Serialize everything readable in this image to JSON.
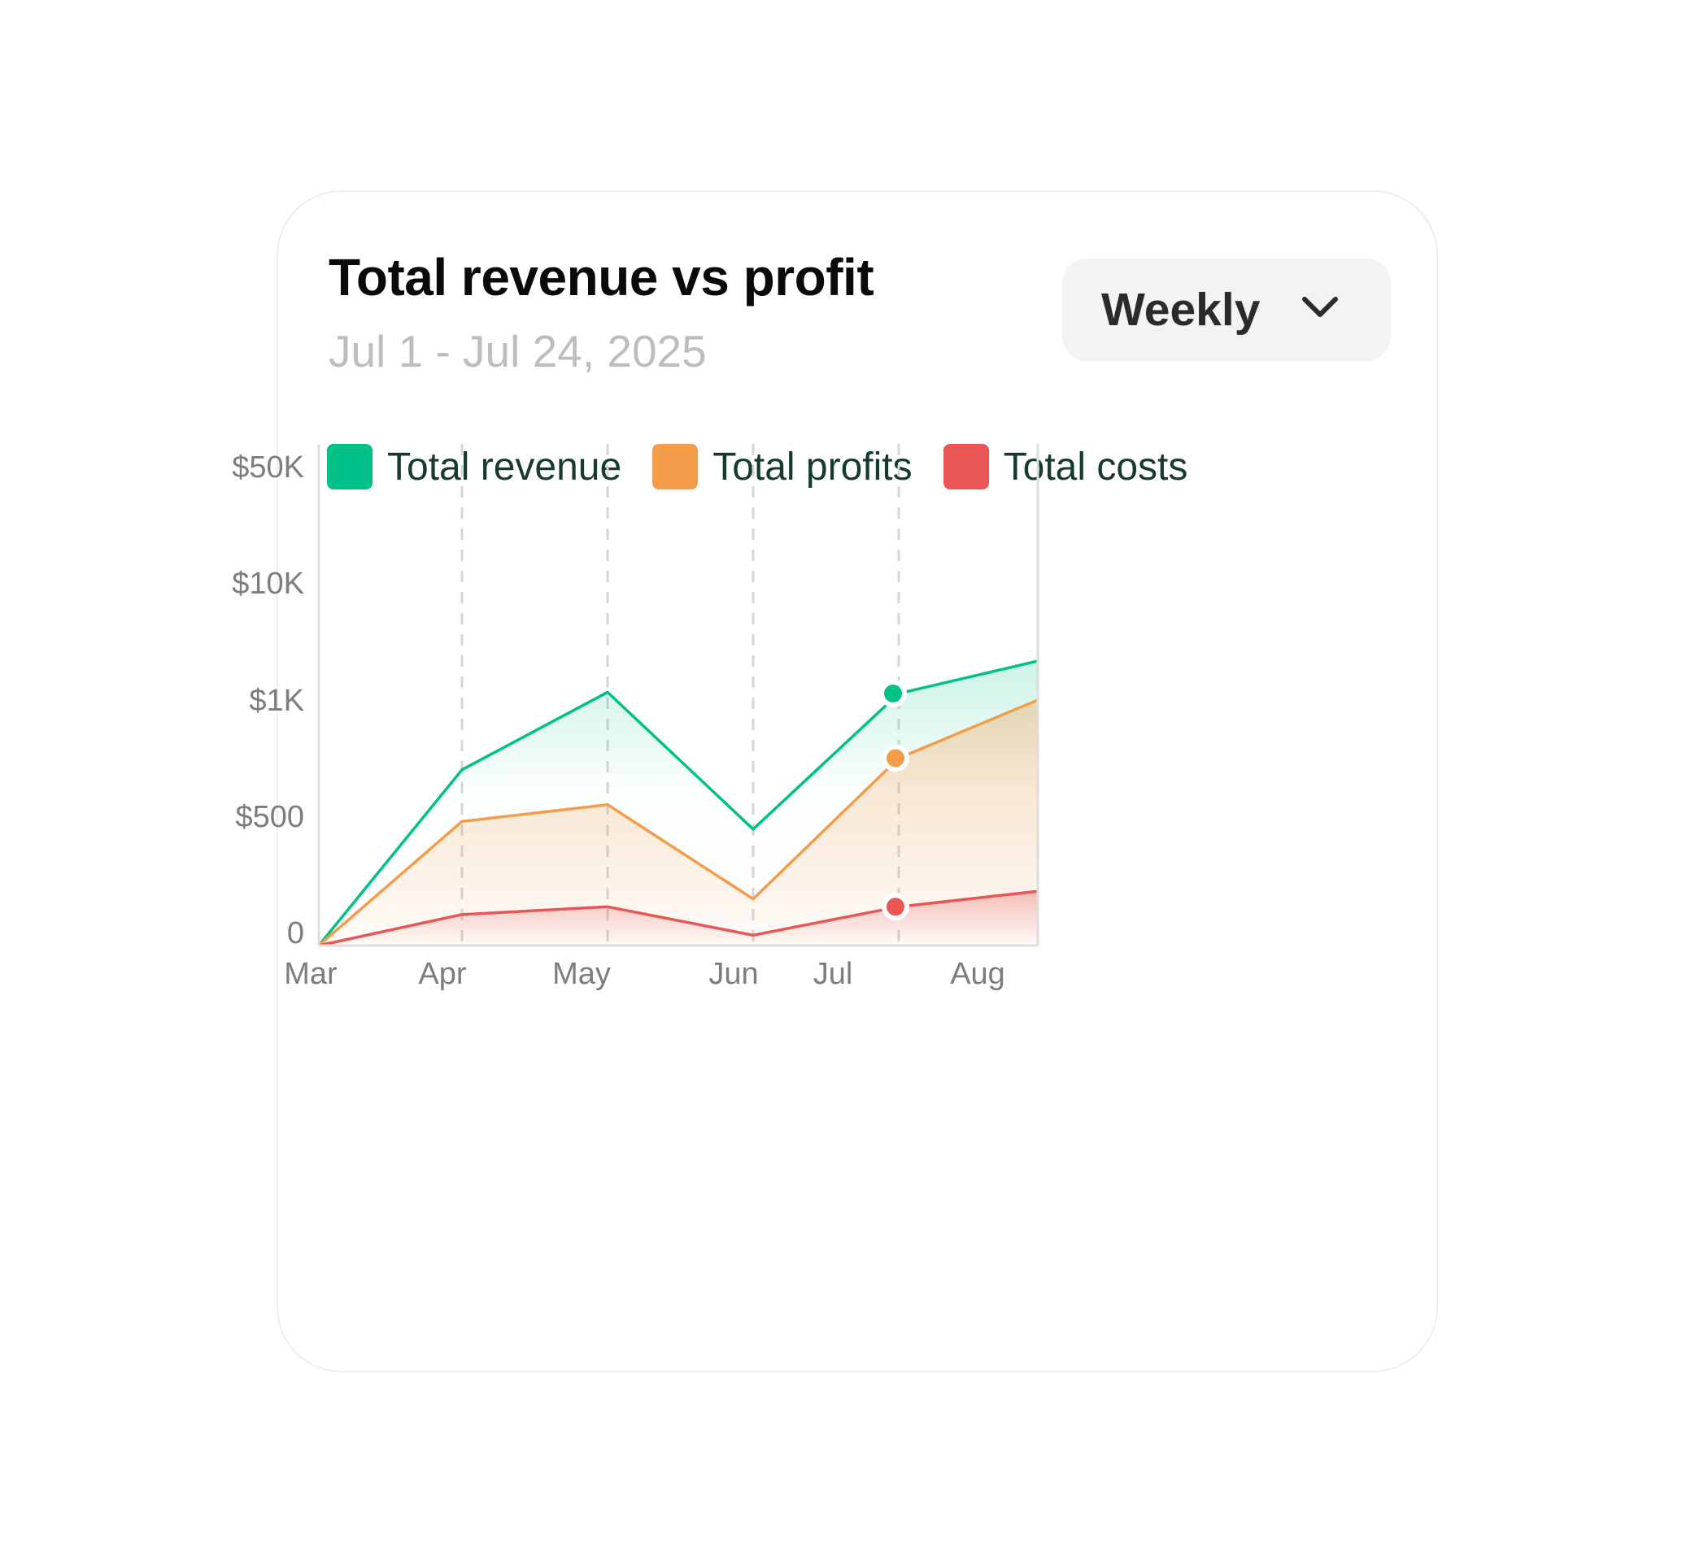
{
  "header": {
    "title": "Total revenue vs profit",
    "subtitle": "Jul 1 - Jul 24, 2025"
  },
  "period_select": {
    "selected": "Weekly",
    "icon": "chevron-down-icon"
  },
  "legend": [
    {
      "label": "Total revenue",
      "color": "#00c187"
    },
    {
      "label": "Total profits",
      "color": "#f39c4a"
    },
    {
      "label": "Total costs",
      "color": "#e85656"
    }
  ],
  "chart_data": {
    "type": "area",
    "categories": [
      "Mar",
      "Apr",
      "May",
      "Jun",
      "Jul",
      "Aug"
    ],
    "y_ticks": [
      "$50K",
      "$10K",
      "$1K",
      "$500",
      "0"
    ],
    "y_tick_values": [
      50000,
      10000,
      1000,
      500,
      0
    ],
    "y_scale": "non-linear (tick-indexed)",
    "grid": "vertical dashed lines at each month",
    "legend_position": "top-left",
    "series": [
      {
        "name": "Total revenue",
        "color": "#00c187",
        "values": [
          0,
          700,
          1600,
          450,
          1500,
          4000
        ]
      },
      {
        "name": "Total profits",
        "color": "#f39c4a",
        "values": [
          0,
          480,
          550,
          180,
          750,
          1000
        ]
      },
      {
        "name": "Total costs",
        "color": "#e85656",
        "values": [
          0,
          120,
          150,
          40,
          150,
          210
        ]
      }
    ],
    "highlight_category": "Jul",
    "highlight_points": [
      {
        "series": "Total revenue",
        "value": 1500
      },
      {
        "series": "Total profits",
        "value": 750
      },
      {
        "series": "Total costs",
        "value": 150
      }
    ]
  }
}
